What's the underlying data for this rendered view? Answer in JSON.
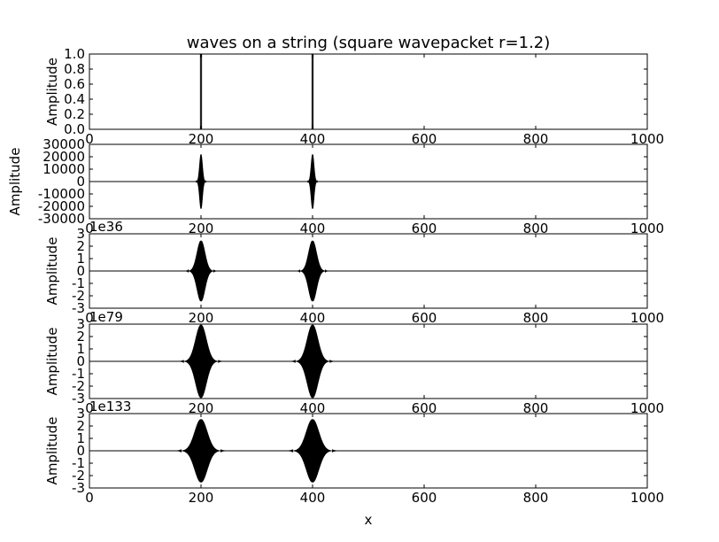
{
  "chart_data": {
    "type": "line",
    "title": "waves on a string (square wavepacket r=1.2)",
    "xlabel": "x",
    "xlim": [
      0,
      1000
    ],
    "xticks": [
      0,
      200,
      400,
      600,
      800,
      1000
    ],
    "line_color": "#000000",
    "panels": [
      {
        "ylabel": "Amplitude",
        "ylim": [
          0,
          1.0
        ],
        "yticks": [
          "0.0",
          "0.2",
          "0.4",
          "0.6",
          "0.8",
          "1.0"
        ],
        "ytick_values": [
          0,
          0.2,
          0.4,
          0.6,
          0.8,
          1.0
        ],
        "offset": "",
        "packets": [
          {
            "center": 200,
            "shape": "step",
            "amp": 1.0,
            "width": 2
          },
          {
            "center": 400,
            "shape": "step",
            "amp": 1.0,
            "width": 2
          }
        ]
      },
      {
        "ylabel": "Amplitude",
        "ylim": [
          -30000,
          30000
        ],
        "yticks": [
          "-30000",
          "-20000",
          "-10000",
          "0",
          "10000",
          "20000",
          "30000"
        ],
        "ytick_values": [
          -30000,
          -20000,
          -10000,
          0,
          10000,
          20000,
          30000
        ],
        "offset": "",
        "packets": [
          {
            "center": 200,
            "shape": "gauss",
            "amp": 22000,
            "sigma": 2.5
          },
          {
            "center": 400,
            "shape": "gauss",
            "amp": 22000,
            "sigma": 2.5
          }
        ]
      },
      {
        "ylabel": "Amplitude",
        "ylim": [
          -3,
          3
        ],
        "yticks": [
          "-3",
          "-2",
          "-1",
          "0",
          "1",
          "2",
          "3"
        ],
        "ytick_values": [
          -3,
          -2,
          -1,
          0,
          1,
          2,
          3
        ],
        "offset": "1e36",
        "packets": [
          {
            "center": 200,
            "shape": "gauss",
            "amp": 2.45,
            "sigma": 7
          },
          {
            "center": 400,
            "shape": "gauss",
            "amp": 2.45,
            "sigma": 7
          }
        ]
      },
      {
        "ylabel": "Amplitude",
        "ylim": [
          -3,
          3
        ],
        "yticks": [
          "-3",
          "-2",
          "-1",
          "0",
          "1",
          "2",
          "3"
        ],
        "ytick_values": [
          -3,
          -2,
          -1,
          0,
          1,
          2,
          3
        ],
        "offset": "1e79",
        "packets": [
          {
            "center": 200,
            "shape": "gauss",
            "amp": 2.95,
            "sigma": 9.5
          },
          {
            "center": 400,
            "shape": "gauss",
            "amp": 2.95,
            "sigma": 9.5
          }
        ]
      },
      {
        "ylabel": "Amplitude",
        "ylim": [
          -3,
          3
        ],
        "yticks": [
          "-3",
          "-2",
          "-1",
          "0",
          "1",
          "2",
          "3"
        ],
        "ytick_values": [
          -3,
          -2,
          -1,
          0,
          1,
          2,
          3
        ],
        "offset": "1e133",
        "packets": [
          {
            "center": 200,
            "shape": "gauss",
            "amp": 2.55,
            "sigma": 11
          },
          {
            "center": 400,
            "shape": "gauss",
            "amp": 2.55,
            "sigma": 11
          }
        ]
      }
    ]
  }
}
